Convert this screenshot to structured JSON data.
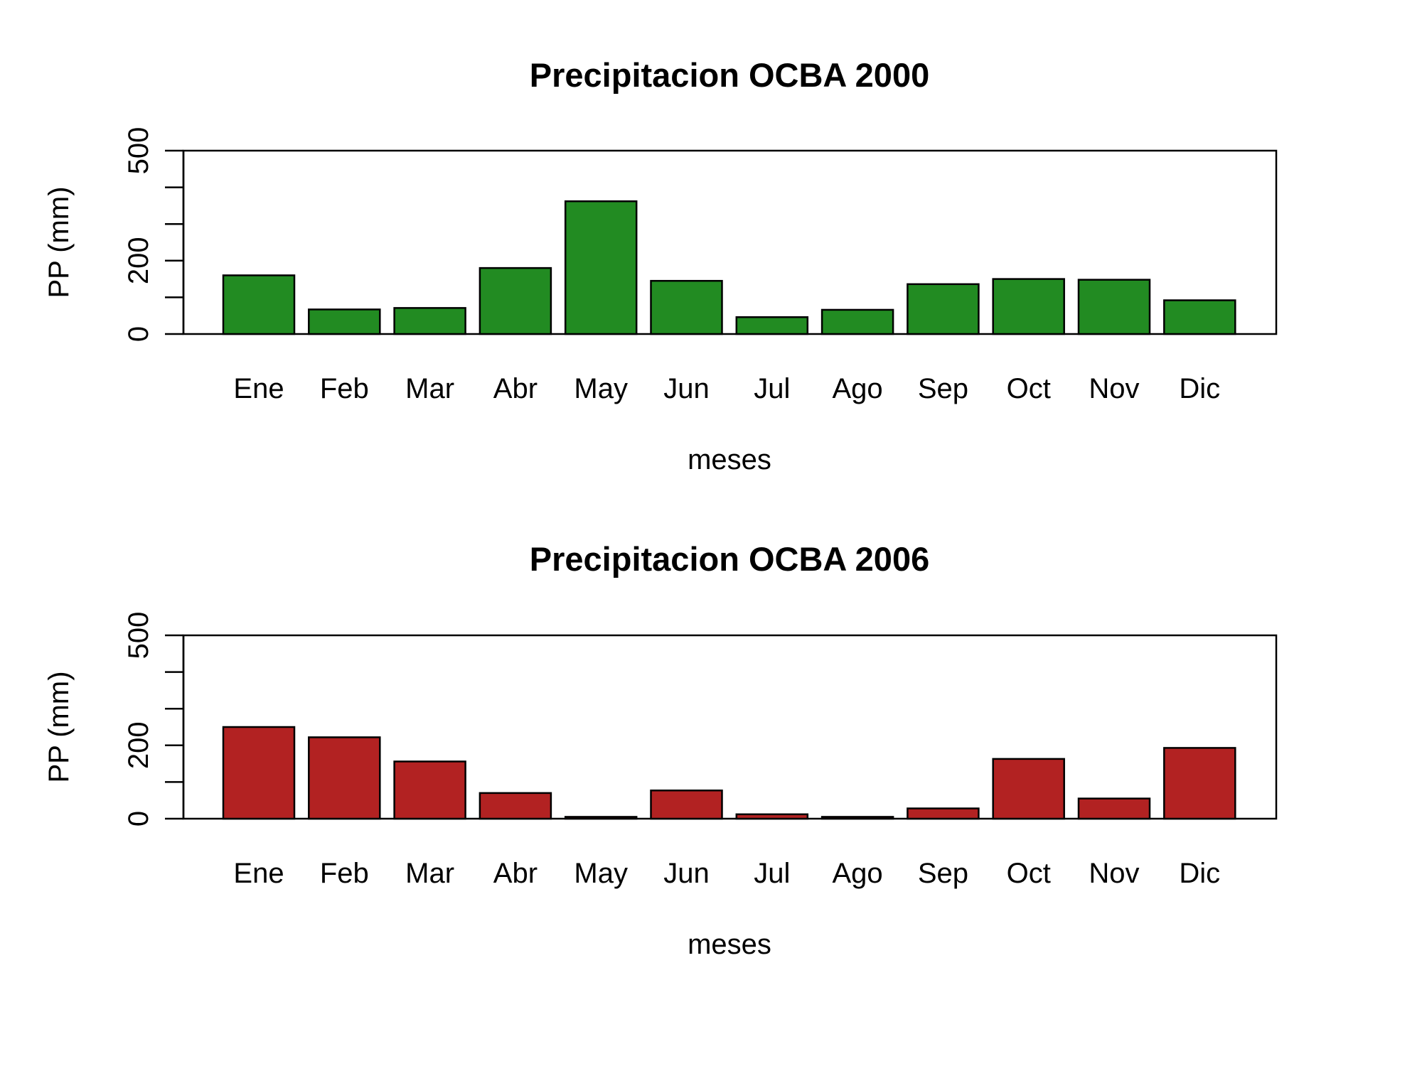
{
  "chart_data": [
    {
      "type": "bar",
      "title": "Precipitacion OCBA 2000",
      "xlabel": "meses",
      "ylabel": "PP (mm)",
      "ylim": [
        0,
        500
      ],
      "yticks": [
        0,
        100,
        200,
        300,
        400,
        500
      ],
      "ytick_labels": [
        "0",
        "",
        "200",
        "",
        "",
        "500"
      ],
      "categories": [
        "Ene",
        "Feb",
        "Mar",
        "Abr",
        "May",
        "Jun",
        "Jul",
        "Ago",
        "Sep",
        "Oct",
        "Nov",
        "Dic"
      ],
      "values": [
        160,
        67,
        71,
        180,
        362,
        145,
        46,
        66,
        136,
        150,
        148,
        92
      ],
      "bar_color": "#228b22",
      "grid": false,
      "legend": "none"
    },
    {
      "type": "bar",
      "title": "Precipitacion OCBA 2006",
      "xlabel": "meses",
      "ylabel": "PP (mm)",
      "ylim": [
        0,
        500
      ],
      "yticks": [
        0,
        100,
        200,
        300,
        400,
        500
      ],
      "ytick_labels": [
        "0",
        "",
        "200",
        "",
        "",
        "500"
      ],
      "categories": [
        "Ene",
        "Feb",
        "Mar",
        "Abr",
        "May",
        "Jun",
        "Jul",
        "Ago",
        "Sep",
        "Oct",
        "Nov",
        "Dic"
      ],
      "values": [
        250,
        222,
        156,
        70,
        5,
        77,
        12,
        5,
        28,
        163,
        55,
        193
      ],
      "bar_color": "#b22222",
      "grid": false,
      "legend": "none"
    }
  ]
}
